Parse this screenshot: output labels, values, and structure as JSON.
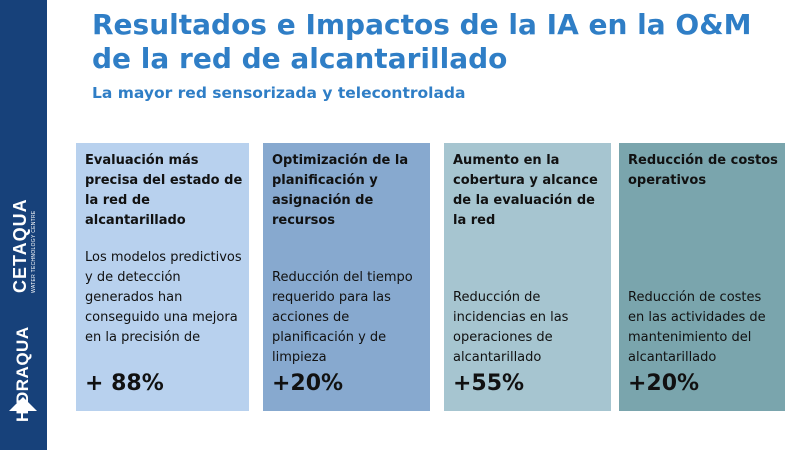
{
  "header": {
    "title": "Resultados e Impactos de la IA en la O&M de la red de alcantarillado",
    "subtitle": "La mayor red sensorizada y telecontrolada"
  },
  "sidebar": {
    "cetaqua_name": "CETAQUA",
    "cetaqua_tagline": "WATER TECHNOLOGY CENTRE",
    "hidraqua_name": "HIDRAQUA",
    "background_color": "#17417a"
  },
  "cards": [
    {
      "heading": "Evaluación más precisa del estado de la red de alcantarillado",
      "body": "Los modelos predictivos y de detección generados han conseguido una mejora en la precisión de",
      "value": "+ 88%",
      "color": "#b8d1ee"
    },
    {
      "heading": "Optimización de la planificación y asignación de recursos",
      "body": "Reducción del tiempo requerido para las acciones de planificación y de limpieza",
      "value": "+20%",
      "color": "#87a9cf"
    },
    {
      "heading": "Aumento en la cobertura y alcance de la evaluación de la red",
      "body": "Reducción de incidencias en las operaciones de alcantarillado",
      "value": "+55%",
      "color": "#a6c5d0"
    },
    {
      "heading": "Reducción de costos operativos",
      "body": "Reducción de costes en las actividades de mantenimiento del alcantarillado",
      "value": "+20%",
      "color": "#7aa5ad"
    }
  ],
  "colors": {
    "title": "#2f7ec6",
    "text": "#111111"
  }
}
